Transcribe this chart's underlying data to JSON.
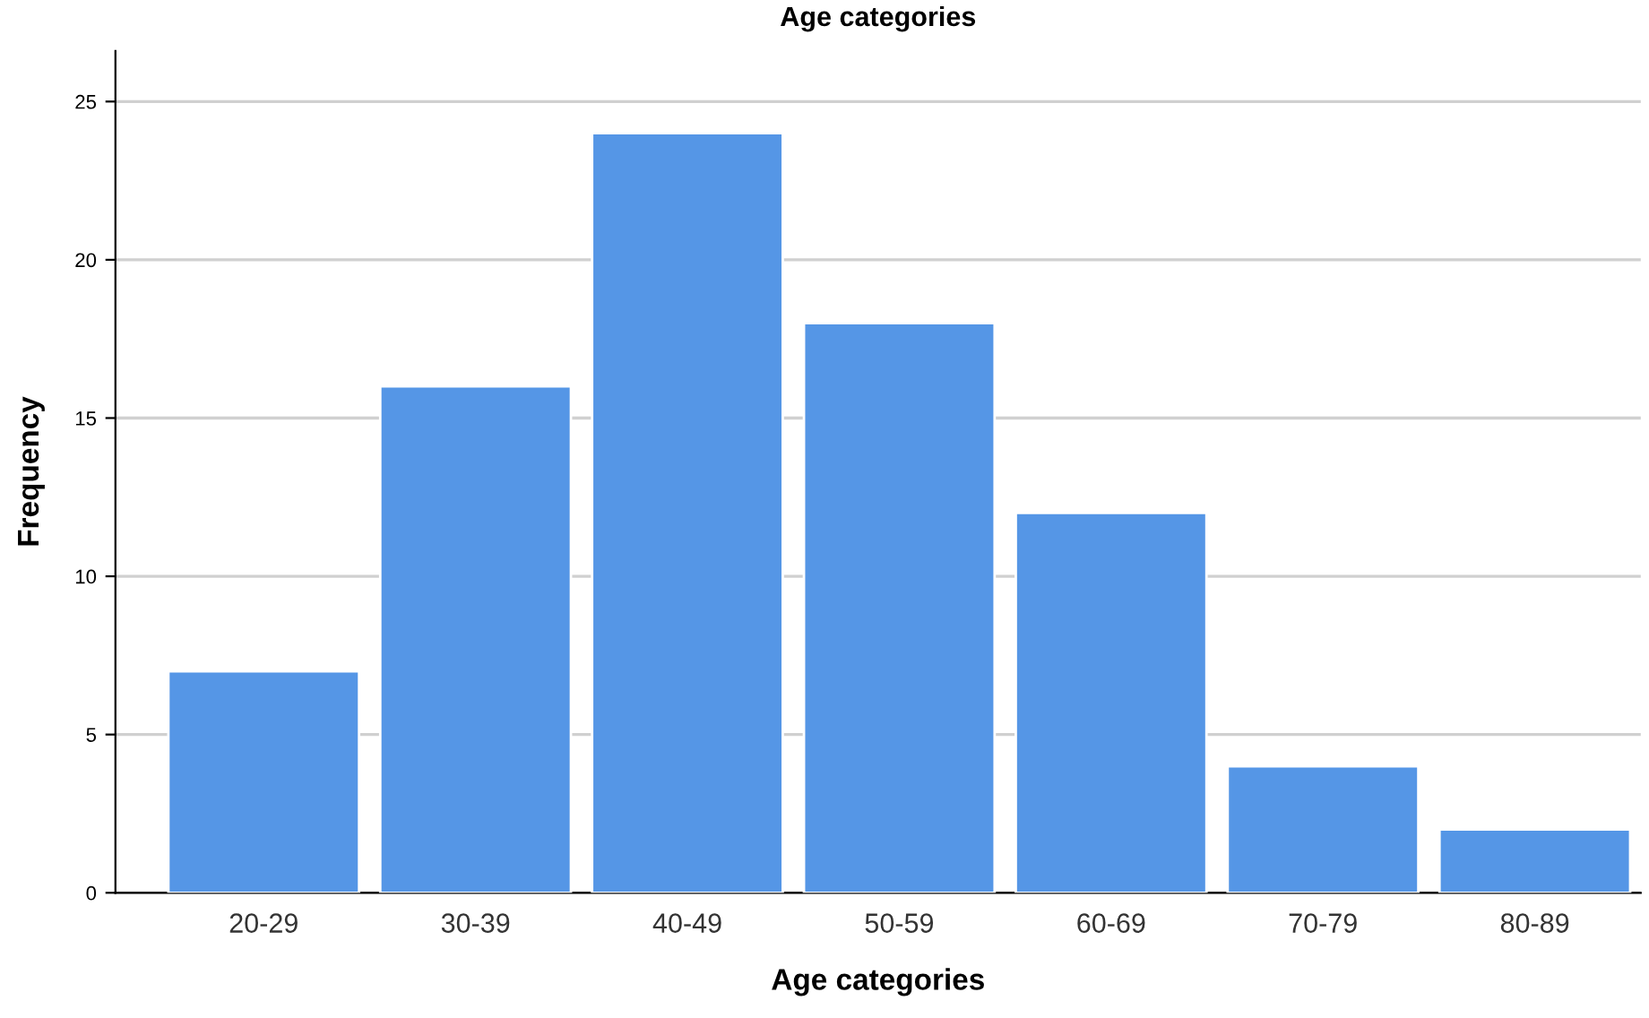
{
  "chart_data": {
    "type": "bar",
    "title": "Age categories",
    "xlabel": "Age categories",
    "ylabel": "Frequency",
    "categories": [
      "20-29",
      "30-39",
      "40-49",
      "50-59",
      "60-69",
      "70-79",
      "80-89"
    ],
    "values": [
      7,
      16,
      24,
      18,
      12,
      4,
      2
    ],
    "color": "#5596e6",
    "ylim": [
      0,
      26.6
    ],
    "yticks": [
      0,
      5,
      10,
      15,
      20,
      25
    ],
    "grid": "y",
    "legend": false
  }
}
